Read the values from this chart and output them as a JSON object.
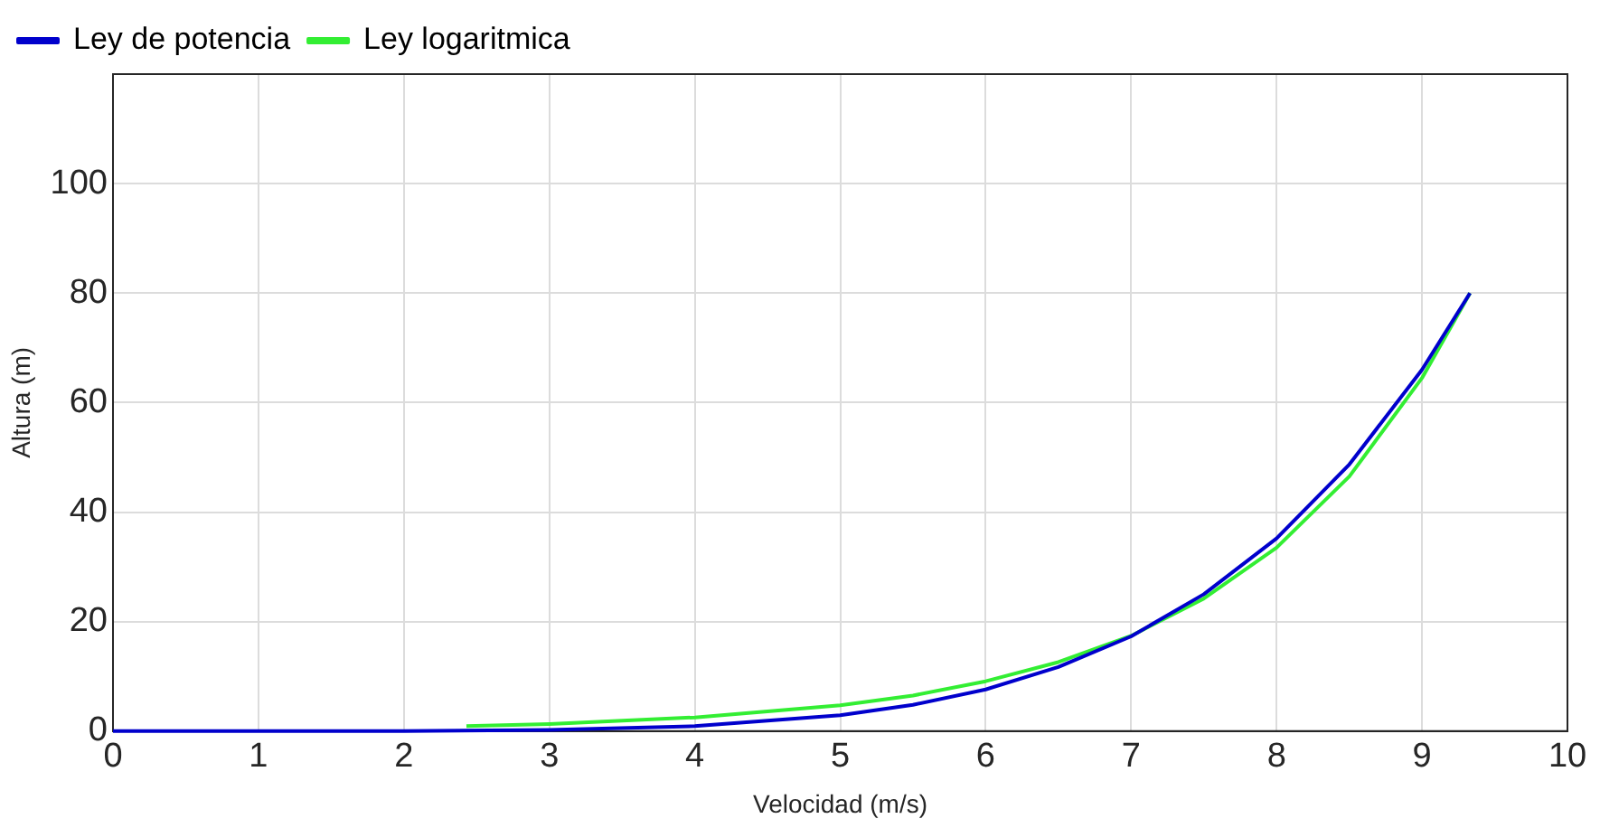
{
  "chart_data": {
    "type": "line",
    "xlabel": "Velocidad (m/s)",
    "ylabel": "Altura (m)",
    "xlim": [
      0,
      10
    ],
    "xticks": [
      0,
      1,
      2,
      3,
      4,
      5,
      6,
      7,
      8,
      9,
      10
    ],
    "ylim": [
      0,
      120
    ],
    "yticks": [
      0,
      20,
      40,
      60,
      80,
      100
    ],
    "grid": true,
    "legend": "top left",
    "marker": "none",
    "line_style": "solid",
    "series": [
      {
        "name": "Ley de potencia",
        "color": "#0000cc",
        "x": [
          0,
          1,
          2,
          3,
          4,
          5,
          5.5,
          6,
          6.5,
          7,
          7.5,
          8,
          8.5,
          9,
          9.33
        ],
        "values": [
          0,
          0,
          0,
          0.2,
          0.9,
          2.9,
          4.8,
          7.6,
          11.7,
          17.3,
          25,
          35.2,
          48.7,
          66,
          80
        ]
      },
      {
        "name": "Ley logaritmica",
        "color": "#33ee33",
        "x": [
          2.43,
          3,
          4,
          5,
          5.5,
          6,
          6.5,
          7,
          7.5,
          8,
          8.5,
          9,
          9.33
        ],
        "values": [
          0.9,
          1.3,
          2.5,
          4.7,
          6.5,
          9.1,
          12.6,
          17.4,
          24.2,
          33.5,
          46.5,
          64.5,
          80
        ]
      }
    ]
  }
}
